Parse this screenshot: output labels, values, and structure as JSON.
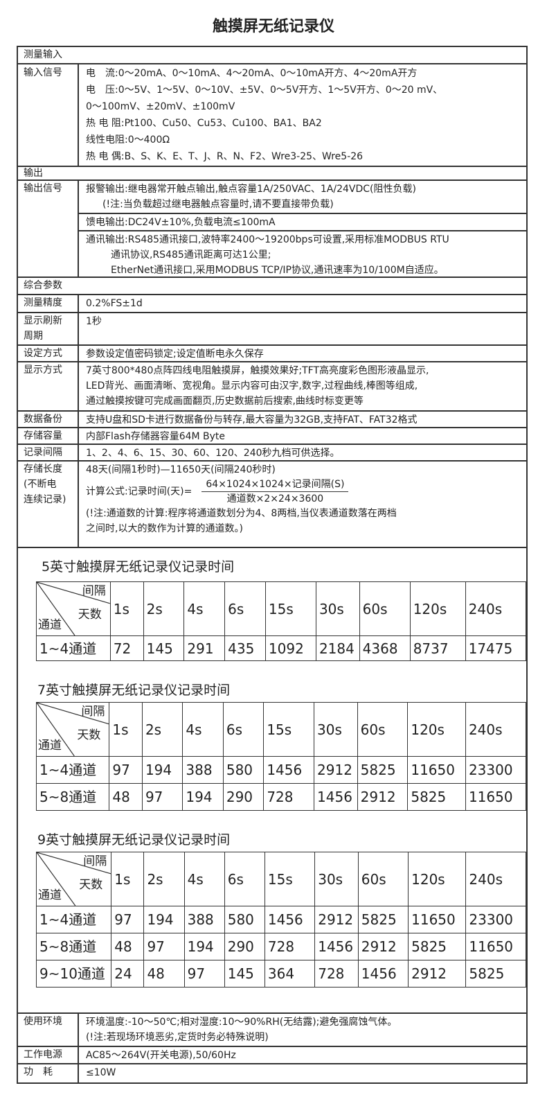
{
  "title": "触摸屏无纸记录仪",
  "sections": {
    "input": "测量输入",
    "output": "输出",
    "general": "综合参数"
  },
  "input_signal": {
    "label": "输入信号",
    "lines": [
      "电　流:0～20mA、0～10mA、4～20mA、0～10mA开方、4～20mA开方",
      "电　压:0～5V、1～5V、0～10V、±5V、0～5V开方、1～5V开方、0～20 mV、",
      "0～100mV、±20mV、±100mV",
      "热 电 阻:Pt100、Cu50、Cu53、Cu100、BA1、BA2",
      "线性电阻:0～400Ω",
      "热 电 偶:B、S、K、E、T、J、R、N、F2、Wre3-25、Wre5-26"
    ]
  },
  "output_signal": {
    "label": "输出信号",
    "alarm": "报警输出:继电器常开触点输出,触点容量1A/250VAC、1A/24VDC(阻性负载)",
    "alarm_note": "(!注:当负载超过继电器触点容量时,请不要直接带负载)",
    "feed": "馈电输出:DC24V±10%,负载电流≤100mA",
    "comm1": "通讯输出:RS485通讯接口,波特率2400～19200bps可设置,采用标准MODBUS RTU",
    "comm2": "通讯协议,RS485通讯距离可达1公里;",
    "comm3": "EtherNet通讯接口,采用MODBUS TCP/IP协议,通讯速率为10/100M自适应。"
  },
  "accuracy": {
    "label": "测量精度",
    "value": "0.2%FS±1d"
  },
  "refresh": {
    "label1": "显示刷新",
    "label2": "周期",
    "value": "1秒"
  },
  "setting": {
    "label": "设定方式",
    "value": "参数设定值密码锁定;设定值断电永久保存"
  },
  "display": {
    "label": "显示方式",
    "lines": [
      "7英寸800*480点阵四线电阻触摸屏，触摸效果好;TFT高亮度彩色图形液晶显示,",
      "LED背光、画面清晰、宽视角。显示内容可由汉字,数字,过程曲线,棒图等组成,",
      "通过触摸按键可完成画面翻页,历史数据前后搜索,曲线时标变更等"
    ]
  },
  "backup": {
    "label": "数据备份",
    "value": "支持U盘和SD卡进行数据备份与转存,最大容量为32GB,支持FAT、FAT32格式"
  },
  "storage": {
    "label": "存储容量",
    "value": "内部Flash存储器容量64M Byte"
  },
  "interval": {
    "label": "记录间隔",
    "value": "1、2、4、6、15、30、60、120、240秒九档可供选择。"
  },
  "length": {
    "label1": "存储长度",
    "label2": "(不断电",
    "label3": "连续记录)",
    "range": "48天(间隔1秒时)—11650天(间隔240秒时)",
    "formula_label": "计算公式:记录时间(天)=",
    "numerator": "64×1024×1024×记录间隔(S)",
    "denominator": "通道数×2×24×3600",
    "note1": "(!注:通道数的计算:程序将通道数划分为4、8两档,当仪表通道数落在两档",
    "note2": "之间时,以大的数作为计算的通道数。)"
  },
  "tables": [
    {
      "title": "5英寸触摸屏无纸记录仪记录时间",
      "hdr_interval": "间隔",
      "hdr_days": "天数",
      "hdr_channel": "通道",
      "columns": [
        "1s",
        "2s",
        "4s",
        "6s",
        "15s",
        "30s",
        "60s",
        "120s",
        "240s"
      ],
      "rows": [
        {
          "label": "1~4通道",
          "values": [
            "72",
            "145",
            "291",
            "435",
            "1092",
            "2184",
            "4368",
            "8737",
            "17475"
          ]
        }
      ]
    },
    {
      "title": "7英寸触摸屏无纸记录仪记录时间",
      "hdr_interval": "间隔",
      "hdr_days": "天数",
      "hdr_channel": "通道",
      "columns": [
        "1s",
        "2s",
        "4s",
        "6s",
        "15s",
        "30s",
        "60s",
        "120s",
        "240s"
      ],
      "rows": [
        {
          "label": "1~4通道",
          "values": [
            "97",
            "194",
            "388",
            "580",
            "1456",
            "2912",
            "5825",
            "11650",
            "23300"
          ]
        },
        {
          "label": "5~8通道",
          "values": [
            "48",
            "97",
            "194",
            "290",
            "728",
            "1456",
            "2912",
            "5825",
            "11650"
          ]
        }
      ]
    },
    {
      "title": "9英寸触摸屏无纸记录仪记录时间",
      "hdr_interval": "间隔",
      "hdr_days": "天数",
      "hdr_channel": "通道",
      "columns": [
        "1s",
        "2s",
        "4s",
        "6s",
        "15s",
        "30s",
        "60s",
        "120s",
        "240s"
      ],
      "rows": [
        {
          "label": "1~4通道",
          "values": [
            "97",
            "194",
            "388",
            "580",
            "1456",
            "2912",
            "5825",
            "11650",
            "23300"
          ]
        },
        {
          "label": "5~8通道",
          "values": [
            "48",
            "97",
            "194",
            "290",
            "728",
            "1456",
            "2912",
            "5825",
            "11650"
          ]
        },
        {
          "label": "9~10通道",
          "values": [
            "24",
            "48",
            "97",
            "145",
            "364",
            "728",
            "1456",
            "2912",
            "5825"
          ]
        }
      ]
    }
  ],
  "environment": {
    "label": "使用环境",
    "value": "环境温度:-10～50℃;相对湿度:10～90%RH(无结露);避免强腐蚀气体。",
    "note": "(!注:若现场环境恶劣,定货时务必特殊说明)"
  },
  "power": {
    "label": "工作电源",
    "value": "AC85～264V(开关电源),50/60Hz"
  },
  "consumption": {
    "label": "功　耗",
    "value": "≤10W"
  }
}
